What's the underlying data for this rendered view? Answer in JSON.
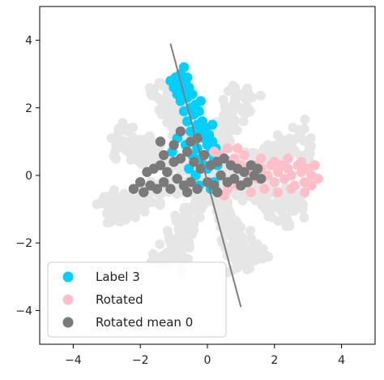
{
  "chart_data": {
    "type": "scatter",
    "xlim": [
      -5,
      5
    ],
    "ylim": [
      -5,
      5
    ],
    "x_ticks": [
      -4,
      -2,
      0,
      2,
      4
    ],
    "y_ticks": [
      -4,
      -2,
      0,
      2,
      4
    ],
    "x_tick_labels": [
      "−4",
      "−2",
      "0",
      "2",
      "4"
    ],
    "y_tick_labels": [
      "−4",
      "−2",
      "0",
      "2",
      "4"
    ],
    "grid": false,
    "legend_position": "lower-left",
    "background_data_color": "#e6e6e6",
    "series": [
      {
        "name": "Label 3",
        "color": "#00cfff",
        "marker": "circle",
        "points": [
          [
            -1.1,
            2.8
          ],
          [
            -1.0,
            2.6
          ],
          [
            -0.95,
            2.9
          ],
          [
            -0.9,
            2.4
          ],
          [
            -0.85,
            2.7
          ],
          [
            -0.8,
            3.0
          ],
          [
            -0.8,
            2.2
          ],
          [
            -0.75,
            2.5
          ],
          [
            -0.7,
            3.2
          ],
          [
            -0.7,
            1.9
          ],
          [
            -0.65,
            2.8
          ],
          [
            -0.6,
            2.3
          ],
          [
            -0.6,
            1.6
          ],
          [
            -0.55,
            2.6
          ],
          [
            -0.5,
            2.0
          ],
          [
            -0.5,
            1.3
          ],
          [
            -0.45,
            2.4
          ],
          [
            -0.4,
            1.8
          ],
          [
            -0.4,
            1.0
          ],
          [
            -0.35,
            2.1
          ],
          [
            -0.3,
            1.5
          ],
          [
            -0.3,
            0.8
          ],
          [
            -0.25,
            1.9
          ],
          [
            -0.2,
            1.3
          ],
          [
            -0.2,
            0.5
          ],
          [
            -0.15,
            1.6
          ],
          [
            -0.1,
            1.1
          ],
          [
            -0.1,
            0.3
          ],
          [
            -0.05,
            1.4
          ],
          [
            0.0,
            0.9
          ],
          [
            0.0,
            0.2
          ],
          [
            0.05,
            1.2
          ],
          [
            0.1,
            0.7
          ],
          [
            0.15,
            1.0
          ],
          [
            0.2,
            0.5
          ],
          [
            0.2,
            -0.2
          ],
          [
            0.25,
            0.8
          ],
          [
            0.3,
            0.3
          ],
          [
            -0.55,
            0.2
          ],
          [
            -0.45,
            0.6
          ],
          [
            -0.35,
            0.0
          ],
          [
            -0.25,
            -0.3
          ],
          [
            -0.65,
            0.9
          ],
          [
            0.1,
            -0.4
          ],
          [
            0.3,
            -0.5
          ],
          [
            0.15,
            1.5
          ],
          [
            -0.2,
            2.2
          ],
          [
            -0.6,
            2.9
          ],
          [
            -0.9,
            1.1
          ],
          [
            -1.05,
            0.7
          ]
        ]
      },
      {
        "name": "Rotated",
        "color": "#ffbfc9",
        "marker": "circle",
        "points": [
          [
            0.2,
            0.7
          ],
          [
            0.4,
            0.6
          ],
          [
            0.6,
            0.8
          ],
          [
            0.8,
            0.5
          ],
          [
            0.9,
            0.8
          ],
          [
            1.0,
            0.3
          ],
          [
            1.2,
            0.1
          ],
          [
            1.4,
            0.3
          ],
          [
            1.5,
            -0.1
          ],
          [
            1.6,
            0.2
          ],
          [
            1.8,
            0.0
          ],
          [
            1.9,
            0.3
          ],
          [
            2.0,
            -0.2
          ],
          [
            2.1,
            0.1
          ],
          [
            2.2,
            0.3
          ],
          [
            2.3,
            -0.1
          ],
          [
            2.4,
            0.2
          ],
          [
            2.5,
            0.0
          ],
          [
            2.6,
            -0.3
          ],
          [
            2.7,
            0.3
          ],
          [
            2.8,
            0.1
          ],
          [
            2.9,
            -0.2
          ],
          [
            3.0,
            0.2
          ],
          [
            3.1,
            0.0
          ],
          [
            3.2,
            0.3
          ],
          [
            3.3,
            -0.1
          ],
          [
            0.6,
            -0.4
          ],
          [
            0.9,
            -0.3
          ],
          [
            1.3,
            -0.5
          ],
          [
            1.7,
            -0.4
          ],
          [
            2.1,
            -0.5
          ],
          [
            2.5,
            -0.4
          ],
          [
            2.9,
            -0.5
          ],
          [
            0.5,
            -0.6
          ],
          [
            1.1,
            0.6
          ],
          [
            1.6,
            0.5
          ],
          [
            2.0,
            0.4
          ],
          [
            2.4,
            0.5
          ],
          [
            2.8,
            0.4
          ],
          [
            3.1,
            -0.3
          ]
        ]
      },
      {
        "name": "Rotated mean 0",
        "color": "#7a7a7a",
        "marker": "circle",
        "points": [
          [
            -2.2,
            -0.4
          ],
          [
            -2.0,
            -0.2
          ],
          [
            -1.9,
            -0.5
          ],
          [
            -1.8,
            0.1
          ],
          [
            -1.7,
            -0.3
          ],
          [
            -1.6,
            0.2
          ],
          [
            -1.5,
            -0.4
          ],
          [
            -1.4,
            0.3
          ],
          [
            -1.3,
            -0.2
          ],
          [
            -1.2,
            0.1
          ],
          [
            -1.1,
            -0.4
          ],
          [
            -1.0,
            0.4
          ],
          [
            -1.0,
            0.9
          ],
          [
            -0.9,
            -0.1
          ],
          [
            -0.8,
            0.5
          ],
          [
            -0.8,
            1.3
          ],
          [
            -0.7,
            -0.3
          ],
          [
            -0.6,
            0.7
          ],
          [
            -0.5,
            -0.2
          ],
          [
            -0.5,
            1.0
          ],
          [
            -0.4,
            0.4
          ],
          [
            -0.3,
            -0.4
          ],
          [
            -0.3,
            1.1
          ],
          [
            -0.2,
            0.2
          ],
          [
            -0.1,
            0.6
          ],
          [
            0.0,
            -0.2
          ],
          [
            0.1,
            0.3
          ],
          [
            0.2,
            -0.3
          ],
          [
            0.3,
            0.4
          ],
          [
            0.4,
            0.0
          ],
          [
            0.5,
            0.5
          ],
          [
            0.6,
            -0.2
          ],
          [
            0.7,
            0.3
          ],
          [
            0.8,
            -0.1
          ],
          [
            0.9,
            0.2
          ],
          [
            1.0,
            -0.3
          ],
          [
            1.1,
            0.1
          ],
          [
            1.2,
            -0.2
          ],
          [
            1.3,
            0.3
          ],
          [
            1.4,
            0.0
          ],
          [
            1.5,
            0.2
          ],
          [
            1.6,
            -0.1
          ],
          [
            -1.3,
            0.6
          ],
          [
            -0.6,
            -0.5
          ],
          [
            0.3,
            -0.5
          ],
          [
            -1.4,
            1.0
          ]
        ]
      }
    ],
    "line": {
      "color": "#808080",
      "points": [
        [
          -1.1,
          3.9
        ],
        [
          1.0,
          -3.9
        ]
      ]
    }
  }
}
